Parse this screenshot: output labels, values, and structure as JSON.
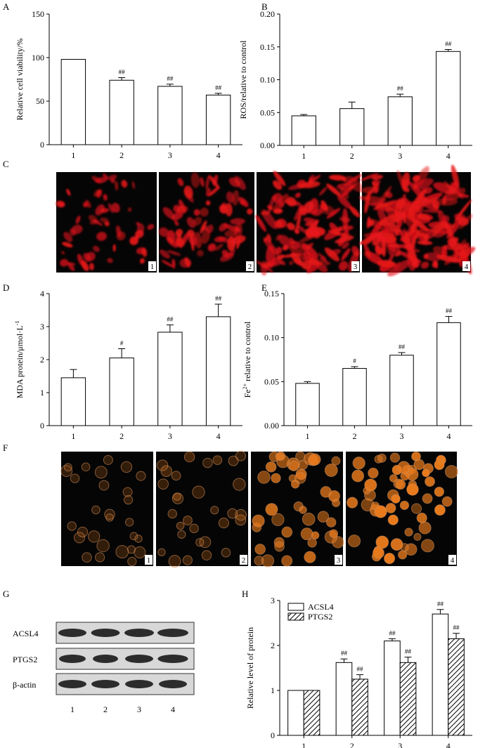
{
  "panels": {
    "A": {
      "letter": "A"
    },
    "B": {
      "letter": "B"
    },
    "C": {
      "letter": "C"
    },
    "D": {
      "letter": "D"
    },
    "E": {
      "letter": "E"
    },
    "F": {
      "letter": "F"
    },
    "G": {
      "letter": "G"
    },
    "H": {
      "letter": "H"
    }
  },
  "image_panels": {
    "C": {
      "labels": [
        "1",
        "2",
        "3",
        "4"
      ],
      "color": "#e8141a"
    },
    "F": {
      "labels": [
        "1",
        "2",
        "3",
        "4"
      ],
      "color": "#e87a1c"
    }
  },
  "western_blot": {
    "bands": [
      "ACSL4",
      "PTGS2",
      "β-actin"
    ],
    "lanes": [
      "1",
      "2",
      "3",
      "4"
    ]
  },
  "chart_data": [
    {
      "id": "A",
      "type": "bar",
      "categories": [
        "1",
        "2",
        "3",
        "4"
      ],
      "values": [
        98,
        74,
        67,
        57
      ],
      "errors": [
        0,
        3,
        2.5,
        2
      ],
      "significance": [
        "",
        "##",
        "##",
        "##"
      ],
      "ylabel": "Relative cell viability/%",
      "ylim": [
        0,
        150
      ],
      "yticks": [
        "0",
        "50",
        "100",
        "150"
      ]
    },
    {
      "id": "B",
      "type": "bar",
      "categories": [
        "1",
        "2",
        "3",
        "4"
      ],
      "values": [
        0.045,
        0.056,
        0.074,
        0.143
      ],
      "errors": [
        0.002,
        0.01,
        0.004,
        0.003
      ],
      "significance": [
        "",
        "",
        "##",
        "##"
      ],
      "ylabel": "ROS/relative to control",
      "ylim": [
        0,
        0.2
      ],
      "yticks": [
        "0.00",
        "0.05",
        "0.10",
        "0.15",
        "0.20"
      ]
    },
    {
      "id": "D",
      "type": "bar",
      "categories": [
        "1",
        "2",
        "3",
        "4"
      ],
      "values": [
        1.45,
        2.05,
        2.83,
        3.3
      ],
      "errors": [
        0.25,
        0.28,
        0.22,
        0.38
      ],
      "significance": [
        "",
        "#",
        "##",
        "##"
      ],
      "ylabel": "MDA protein/μmol·L",
      "ylabel_sup": "-1",
      "ylim": [
        0,
        4
      ],
      "yticks": [
        "0",
        "1",
        "2",
        "3",
        "4"
      ]
    },
    {
      "id": "E",
      "type": "bar",
      "categories": [
        "1",
        "2",
        "3",
        "4"
      ],
      "values": [
        0.048,
        0.065,
        0.08,
        0.117
      ],
      "errors": [
        0.002,
        0.002,
        0.003,
        0.007
      ],
      "significance": [
        "",
        "#",
        "##",
        "##"
      ],
      "ylabel_pre": "Fe",
      "ylabel_sup": "2+",
      "ylabel": " relative to control",
      "ylim": [
        0,
        0.15
      ],
      "yticks": [
        "0.00",
        "0.05",
        "0.10",
        "0.15"
      ]
    },
    {
      "id": "H",
      "type": "bar",
      "categories": [
        "1",
        "2",
        "3",
        "4"
      ],
      "series": [
        {
          "name": "ACSL4",
          "values": [
            1.0,
            1.62,
            2.1,
            2.7
          ],
          "errors": [
            0,
            0.08,
            0.05,
            0.1
          ],
          "significance": [
            "",
            "##",
            "##",
            "##"
          ]
        },
        {
          "name": "PTGS2",
          "values": [
            1.0,
            1.25,
            1.62,
            2.15
          ],
          "errors": [
            0,
            0.1,
            0.12,
            0.12
          ],
          "significance": [
            "",
            "##",
            "##",
            "##"
          ]
        }
      ],
      "ylabel": "Relative level of protein",
      "ylim": [
        0,
        3
      ],
      "yticks": [
        "0",
        "1",
        "2",
        "3"
      ],
      "legend_position": "top-left"
    }
  ]
}
